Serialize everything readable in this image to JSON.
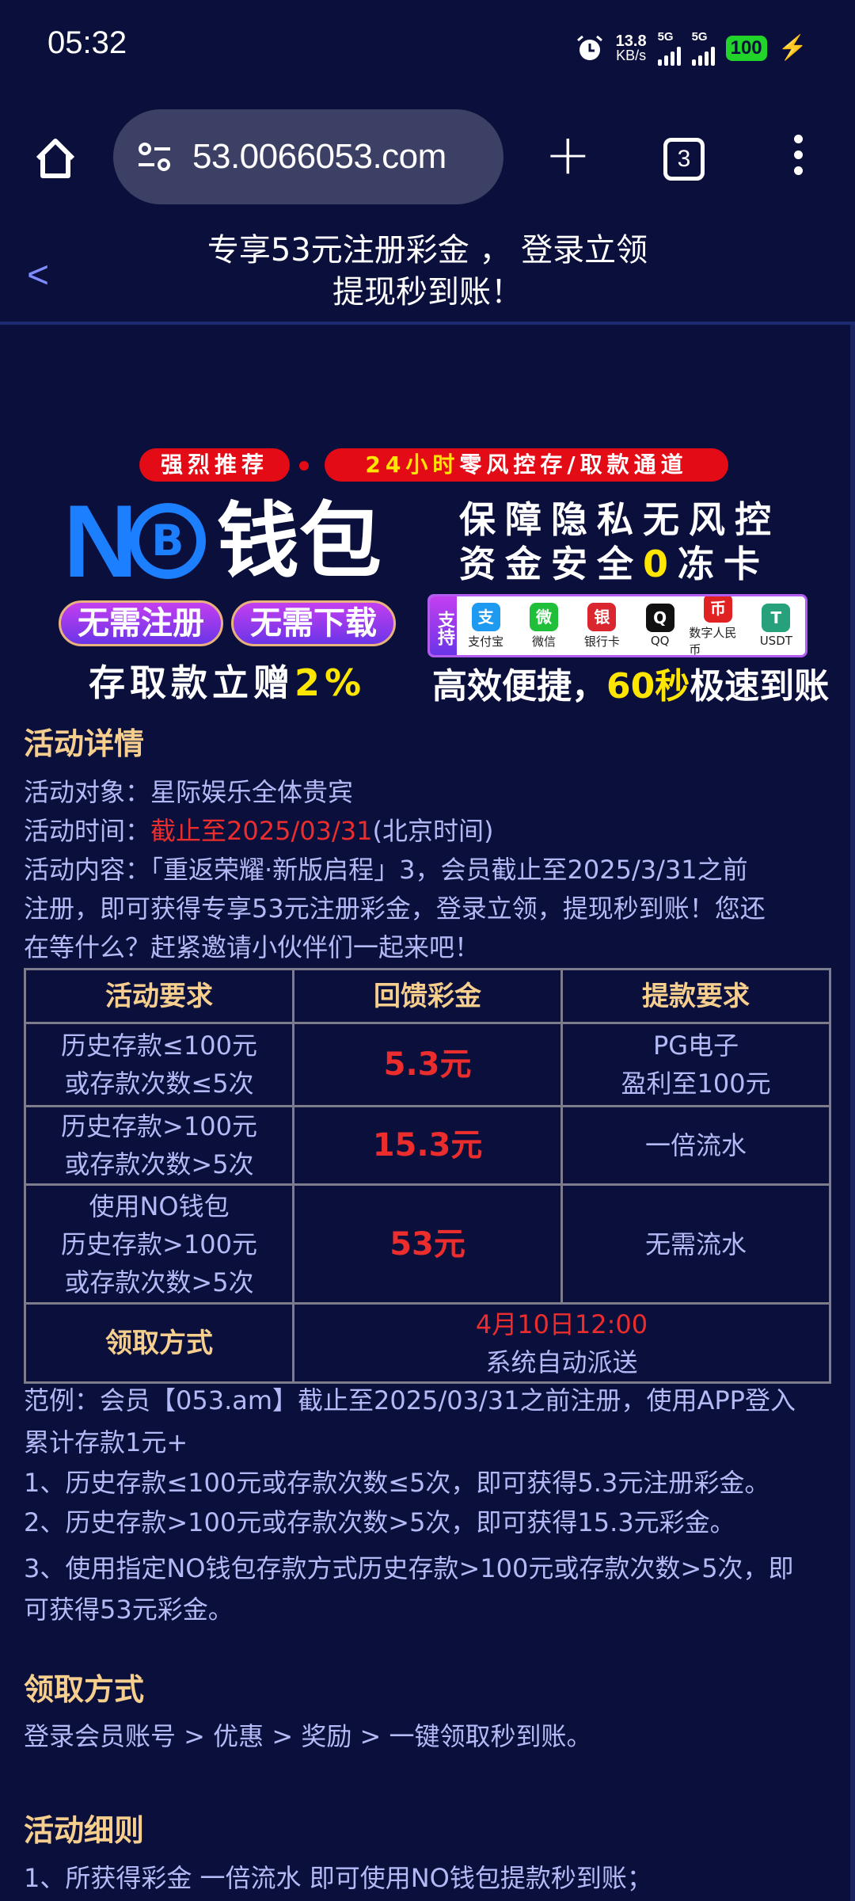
{
  "status_bar": {
    "time": "05:32",
    "net_speed": "13.8",
    "net_unit": "KB/s",
    "sim1": "5G",
    "sim2": "5G",
    "battery": "100",
    "icons": [
      "alarm-icon",
      "signal-icon",
      "battery-icon",
      "charging-icon"
    ]
  },
  "browser": {
    "url": "53.0066053.com",
    "tab_count": "3",
    "icons": [
      "home-icon",
      "site-settings-icon",
      "plus-icon",
      "tabs-icon",
      "more-vert-icon"
    ]
  },
  "page_header": {
    "back_icon": "chevron-left-icon",
    "title_line1": "专享53元注册彩金 ， 登录立领",
    "title_line2": "提现秒到账！"
  },
  "banner": {
    "pill1": "强烈推荐",
    "pill2_yellow": "24小时",
    "pill2_rest": "零风控存/取款通道",
    "logo_no": "N",
    "logo_coin": "B",
    "logo_wallet": "钱包",
    "btn1": "无需注册",
    "btn2": "无需下载",
    "gift_text": "存取款立赠",
    "gift_pct": "2%",
    "slogan1": "保障隐私无风控",
    "slogan2_a": "资金安全",
    "slogan2_zero": "0",
    "slogan2_b": "冻卡",
    "support_label": "支持",
    "payments": [
      {
        "label": "支付宝",
        "glyph": "支",
        "color": "#1e9bf0"
      },
      {
        "label": "微信",
        "glyph": "微",
        "color": "#1fbf3a"
      },
      {
        "label": "银行卡",
        "glyph": "银",
        "color": "#d9262f"
      },
      {
        "label": "QQ",
        "glyph": "Q",
        "color": "#111111"
      },
      {
        "label": "数字人民币",
        "glyph": "币",
        "color": "#e02222"
      },
      {
        "label": "USDT",
        "glyph": "T",
        "color": "#26a17b"
      }
    ],
    "fast_a": "高效便捷，",
    "fast_yellow": "60秒",
    "fast_b": "极速到账"
  },
  "details": {
    "heading": "活动详情",
    "target_label": "活动对象：",
    "target": "星际娱乐全体贵宾",
    "time_label": "活动时间：",
    "time_red": "截止至2025/03/31",
    "time_suffix": "(北京时间)",
    "content_line1": "活动内容：「重返荣耀·新版启程」3，会员截止至2025/3/31之前",
    "content_line2": "注册，即可获得专享53元注册彩金，登录立领，提现秒到账！您还",
    "content_line3": "在等什么？赶紧邀请小伙伴们一起来吧！"
  },
  "table": {
    "headers": [
      "活动要求",
      "回馈彩金",
      "提款要求"
    ],
    "rows": [
      {
        "req": [
          "历史存款≤100元",
          "或存款次数≤5次"
        ],
        "bonus": "5.3元",
        "withdraw": [
          "PG电子",
          "盈利至100元"
        ]
      },
      {
        "req": [
          "历史存款>100元",
          "或存款次数>5次"
        ],
        "bonus": "15.3元",
        "withdraw": [
          "一倍流水"
        ]
      },
      {
        "req": [
          "使用NO钱包",
          "历史存款>100元",
          "或存款次数>5次"
        ],
        "bonus": "53元",
        "withdraw": [
          "无需流水"
        ]
      }
    ],
    "claim_label": "领取方式",
    "claim_time": "4月10日12:00",
    "claim_method": "系统自动派送"
  },
  "example": {
    "line1": "范例：会员【053.am】截止至2025/03/31之前注册，使用APP登入",
    "line2": "累计存款1元+",
    "item1": "1、历史存款≤100元或存款次数≤5次，即可获得5.3元注册彩金。",
    "item2": "2、历史存款>100元或存款次数>5次，即可获得15.3元彩金。",
    "item3a": "3、使用指定NO钱包存款方式历史存款>100元或存款次数>5次，即",
    "item3b": "可获得53元彩金。"
  },
  "claim": {
    "heading": "领取方式",
    "path": "登录会员账号 > 优惠 > 奖励 > 一键领取秒到账。"
  },
  "rules": {
    "heading": "活动细则",
    "item1": "1、所获得彩金 一倍流水 即可使用NO钱包提款秒到账；"
  }
}
